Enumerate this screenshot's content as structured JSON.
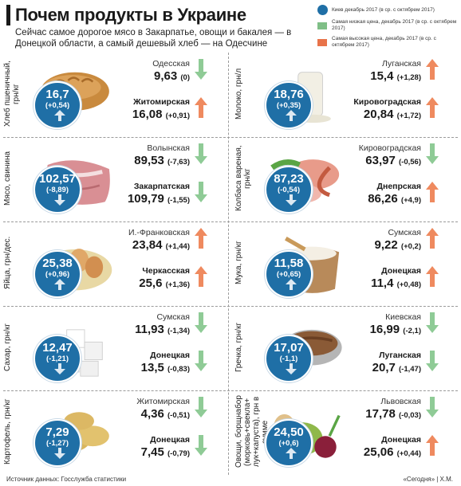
{
  "header": {
    "title": "Почем продукты в Украине",
    "subtitle": "Сейчас самое дорогое мясо в Закарпатье, овощи и бакалея — в Донецкой области, а самый дешевый хлеб — на Одесчине"
  },
  "legend": [
    {
      "key": "avg",
      "label": "Киев декабрь 2017 (в ср. с октябрем 2017)",
      "color": "#1f6fa6"
    },
    {
      "key": "low",
      "label": "Самая низкая цена, декабрь 2017 (в ср. с октябрем 2017)",
      "color": "#7fbf87"
    },
    {
      "key": "high",
      "label": "Самая высокая цена, декабрь 2017 (в ср. с октябрем 2017)",
      "color": "#e8734a"
    }
  ],
  "colors": {
    "circle": "#1f6fa6",
    "down": "#8fcb96",
    "up": "#ef8a5f",
    "grey": "#c9c9c9"
  },
  "products": [
    {
      "label": "Хлеб пшеничный, грн/кг",
      "icon": "bread",
      "avg": "16,7",
      "avg_chg": "(+0,54)",
      "avg_dir": "up",
      "low_region": "Одесская",
      "low_price": "9,63",
      "low_chg": "(0)",
      "low_dir": "flat",
      "high_region": "Житомирская",
      "high_price": "16,08",
      "high_chg": "(+0,91)",
      "high_dir": "up"
    },
    {
      "label": "Молоко, грн/л",
      "icon": "milk",
      "avg": "18,76",
      "avg_chg": "(+0,35)",
      "avg_dir": "up",
      "low_region": "Луганская",
      "low_price": "15,4",
      "low_chg": "(+1,28)",
      "low_dir": "up",
      "high_region": "Кировоградская",
      "high_price": "20,84",
      "high_chg": "(+1,72)",
      "high_dir": "up"
    },
    {
      "label": "Мясо, свинина",
      "icon": "pork",
      "avg": "102,57",
      "avg_chg": "(-8,89)",
      "avg_dir": "down",
      "low_region": "Волынская",
      "low_price": "89,53",
      "low_chg": "(-7,63)",
      "low_dir": "down",
      "high_region": "Закарпатская",
      "high_price": "109,79",
      "high_chg": "(-1,55)",
      "high_dir": "down"
    },
    {
      "label": "Колбаса вареная, грн/кг",
      "icon": "sausage",
      "avg": "87,23",
      "avg_chg": "(-0,54)",
      "avg_dir": "down",
      "low_region": "Кировоградская",
      "low_price": "63,97",
      "low_chg": "(-0,56)",
      "low_dir": "down",
      "high_region": "Днепрская",
      "high_price": "86,26",
      "high_chg": "(+4,9)",
      "high_dir": "up"
    },
    {
      "label": "Яйца, грн/дес.",
      "icon": "eggs",
      "avg": "25,38",
      "avg_chg": "(+0,96)",
      "avg_dir": "up",
      "low_region": "И.-Франковская",
      "low_price": "23,84",
      "low_chg": "(+1,44)",
      "low_dir": "up",
      "high_region": "Черкасская",
      "high_price": "25,6",
      "high_chg": "(+1,36)",
      "high_dir": "up"
    },
    {
      "label": "Мука, грн/кг",
      "icon": "flour",
      "avg": "11,58",
      "avg_chg": "(+0,65)",
      "avg_dir": "up",
      "low_region": "Сумская",
      "low_price": "9,22",
      "low_chg": "(+0,2)",
      "low_dir": "up",
      "high_region": "Донецкая",
      "high_price": "11,4",
      "high_chg": "(+0,48)",
      "high_dir": "up"
    },
    {
      "label": "Сахар, грн/кг",
      "icon": "sugar",
      "avg": "12,47",
      "avg_chg": "(-1,21)",
      "avg_dir": "down",
      "low_region": "Сумская",
      "low_price": "11,93",
      "low_chg": "(-1,34)",
      "low_dir": "down",
      "high_region": "Донецкая",
      "high_price": "13,5",
      "high_chg": "(-0,83)",
      "high_dir": "down"
    },
    {
      "label": "Гречка, грн/кг",
      "icon": "buckwheat",
      "avg": "17,07",
      "avg_chg": "(-1,1)",
      "avg_dir": "down",
      "low_region": "Киевская",
      "low_price": "16,99",
      "low_chg": "(-2,1)",
      "low_dir": "down",
      "high_region": "Луганская",
      "high_price": "20,7",
      "high_chg": "(-1,47)",
      "high_dir": "down"
    },
    {
      "label": "Картофель, грн/кг",
      "icon": "potato",
      "avg": "7,29",
      "avg_chg": "(-1,27)",
      "avg_dir": "down",
      "low_region": "Житомирская",
      "low_price": "4,36",
      "low_chg": "(-0,51)",
      "low_dir": "down",
      "high_region": "Донецкая",
      "high_price": "7,45",
      "high_chg": "(-0,79)",
      "high_dir": "down"
    },
    {
      "label": "Овощи, борщнабор (морковь+свекла+ лук+капуста), грн в сумме",
      "icon": "vegetables",
      "avg": "24,50",
      "avg_chg": "(+0,6)",
      "avg_dir": "up",
      "low_region": "Львовская",
      "low_price": "17,78",
      "low_chg": "(-0,03)",
      "low_dir": "down",
      "high_region": "Донецкая",
      "high_price": "25,06",
      "high_chg": "(+0,44)",
      "high_dir": "up"
    }
  ],
  "footer": {
    "source": "Источник данных: Госслужба статистики",
    "credit": "«Сегодня» | Х.М."
  }
}
